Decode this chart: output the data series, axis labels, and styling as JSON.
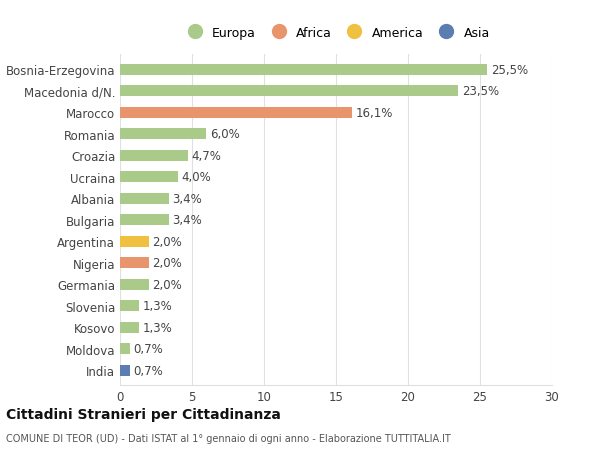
{
  "categories": [
    "India",
    "Moldova",
    "Kosovo",
    "Slovenia",
    "Germania",
    "Nigeria",
    "Argentina",
    "Bulgaria",
    "Albania",
    "Ucraina",
    "Croazia",
    "Romania",
    "Marocco",
    "Macedonia d/N.",
    "Bosnia-Erzegovina"
  ],
  "values": [
    0.7,
    0.7,
    1.3,
    1.3,
    2.0,
    2.0,
    2.0,
    3.4,
    3.4,
    4.0,
    4.7,
    6.0,
    16.1,
    23.5,
    25.5
  ],
  "labels": [
    "0,7%",
    "0,7%",
    "1,3%",
    "1,3%",
    "2,0%",
    "2,0%",
    "2,0%",
    "3,4%",
    "3,4%",
    "4,0%",
    "4,7%",
    "6,0%",
    "16,1%",
    "23,5%",
    "25,5%"
  ],
  "colors": [
    "#5b7db1",
    "#aaca8a",
    "#aaca8a",
    "#aaca8a",
    "#aaca8a",
    "#e8956d",
    "#f0c040",
    "#aaca8a",
    "#aaca8a",
    "#aaca8a",
    "#aaca8a",
    "#aaca8a",
    "#e8956d",
    "#aaca8a",
    "#aaca8a"
  ],
  "legend_labels": [
    "Europa",
    "Africa",
    "America",
    "Asia"
  ],
  "legend_colors": [
    "#aaca8a",
    "#e8956d",
    "#f0c040",
    "#5b7db1"
  ],
  "title": "Cittadini Stranieri per Cittadinanza",
  "subtitle": "COMUNE DI TEOR (UD) - Dati ISTAT al 1° gennaio di ogni anno - Elaborazione TUTTITALIA.IT",
  "xlim": [
    0,
    30
  ],
  "xticks": [
    0,
    5,
    10,
    15,
    20,
    25,
    30
  ],
  "background_color": "#ffffff",
  "bar_height": 0.5,
  "grid_color": "#e0e0e0",
  "label_fontsize": 8.5,
  "tick_fontsize": 8.5,
  "label_color": "#444444"
}
